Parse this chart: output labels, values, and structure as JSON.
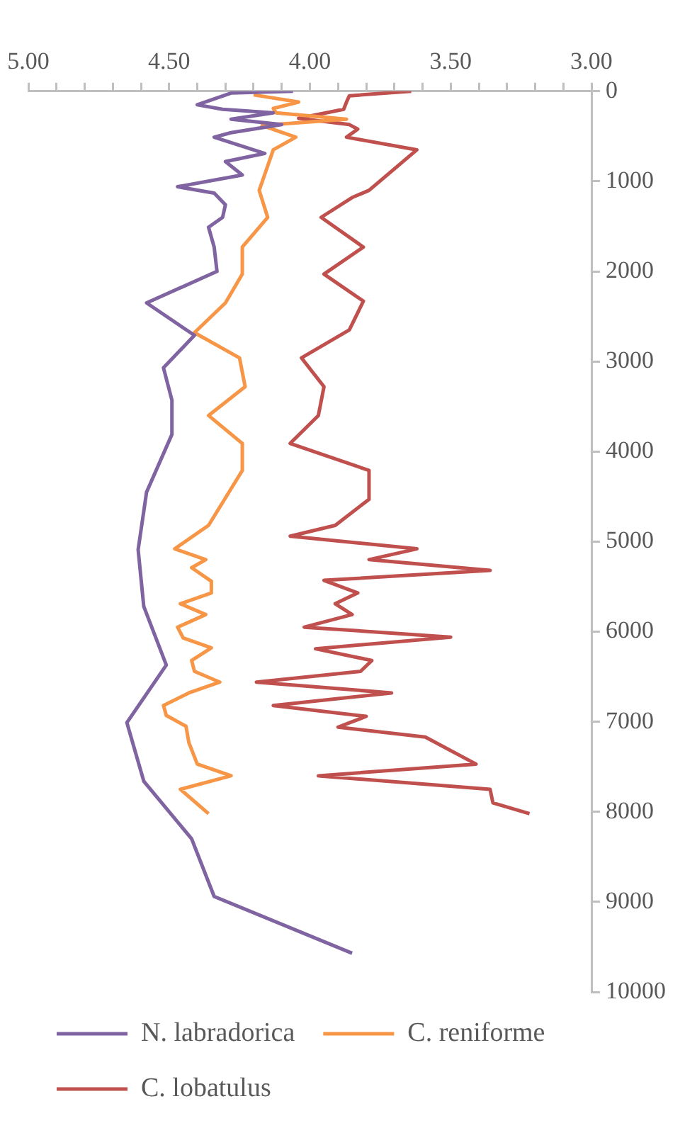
{
  "chart_data": {
    "type": "line",
    "xlim": [
      5,
      3
    ],
    "ylim": [
      10000,
      0
    ],
    "xticks": [
      {
        "value": 5,
        "label": "5.00"
      },
      {
        "value": 4.9,
        "label": null
      },
      {
        "value": 4.8,
        "label": null
      },
      {
        "value": 4.7,
        "label": null
      },
      {
        "value": 4.6,
        "label": null
      },
      {
        "value": 4.5,
        "label": "4.50"
      },
      {
        "value": 4.4,
        "label": null
      },
      {
        "value": 4.3,
        "label": null
      },
      {
        "value": 4.2,
        "label": null
      },
      {
        "value": 4.1,
        "label": null
      },
      {
        "value": 4,
        "label": "4.00"
      },
      {
        "value": 3.9,
        "label": null
      },
      {
        "value": 3.8,
        "label": null
      },
      {
        "value": 3.7,
        "label": null
      },
      {
        "value": 3.6,
        "label": null
      },
      {
        "value": 3.5,
        "label": "3.50"
      },
      {
        "value": 3.4,
        "label": null
      },
      {
        "value": 3.3,
        "label": null
      },
      {
        "value": 3.2,
        "label": null
      },
      {
        "value": 3.1,
        "label": null
      },
      {
        "value": 3,
        "label": "3.00"
      }
    ],
    "yticks": [
      0,
      1000,
      2000,
      3000,
      4000,
      5000,
      6000,
      7000,
      8000,
      9000,
      10000
    ],
    "grid": false,
    "legend": "bottom",
    "marker": "none",
    "series": [
      {
        "name": "N. labradorica",
        "color": "#8064a2",
        "x": [
          4.06,
          4.28,
          4.4,
          4.31,
          4.13,
          4.28,
          4.1,
          4.28,
          4.34,
          4.16,
          4.3,
          4.24,
          4.47,
          4.34,
          4.3,
          4.31,
          4.36,
          4.34,
          4.33,
          4.58,
          4.41,
          4.52,
          4.49,
          4.49,
          4.58,
          4.61,
          4.59,
          4.51,
          4.65,
          4.59,
          4.42,
          4.34,
          3.85
        ],
        "values": [
          0,
          20,
          150,
          200,
          240,
          310,
          370,
          460,
          510,
          690,
          780,
          930,
          1060,
          1130,
          1260,
          1400,
          1510,
          1730,
          2000,
          2350,
          2710,
          3070,
          3430,
          3810,
          4450,
          5090,
          5720,
          6370,
          7010,
          7660,
          8300,
          8940,
          9570
        ]
      },
      {
        "name": "C. reniforme",
        "color": "#f79646",
        "x": [
          4.2,
          4.04,
          4.13,
          4.12,
          3.87,
          4.17,
          4.05,
          4.13,
          4.18,
          4.15,
          4.24,
          4.24,
          4.3,
          4.41,
          4.25,
          4.23,
          4.36,
          4.24,
          4.24,
          4.36,
          4.48,
          4.37,
          4.42,
          4.35,
          4.35,
          4.46,
          4.37,
          4.47,
          4.45,
          4.35,
          4.42,
          4.41,
          4.32,
          4.43,
          4.52,
          4.51,
          4.44,
          4.43,
          4.4,
          4.28,
          4.46,
          4.36
        ],
        "values": [
          40,
          120,
          190,
          240,
          310,
          380,
          510,
          650,
          1100,
          1400,
          1730,
          2030,
          2350,
          2680,
          2960,
          3280,
          3600,
          3910,
          4210,
          4820,
          5080,
          5200,
          5290,
          5440,
          5570,
          5690,
          5810,
          5950,
          6070,
          6180,
          6320,
          6440,
          6560,
          6680,
          6820,
          6930,
          7050,
          7230,
          7470,
          7600,
          7750,
          8020
        ]
      },
      {
        "name": "C. lobatulus",
        "color": "#c0504d",
        "x": [
          3.64,
          3.86,
          3.87,
          3.88,
          4.04,
          3.86,
          3.83,
          3.87,
          3.62,
          3.79,
          3.85,
          3.96,
          3.81,
          3.95,
          3.81,
          3.86,
          4.03,
          3.95,
          3.97,
          4.07,
          3.79,
          3.79,
          3.91,
          4.07,
          3.62,
          3.79,
          3.36,
          3.95,
          3.83,
          3.91,
          3.85,
          4.02,
          3.5,
          3.98,
          3.78,
          3.82,
          4.19,
          3.71,
          4.13,
          3.8,
          3.9,
          3.59,
          3.41,
          3.97,
          3.36,
          3.35,
          3.22
        ],
        "values": [
          0,
          50,
          120,
          200,
          300,
          370,
          420,
          510,
          650,
          1100,
          1180,
          1400,
          1730,
          2030,
          2330,
          2650,
          2960,
          3280,
          3600,
          3910,
          4210,
          4530,
          4820,
          4940,
          5080,
          5200,
          5320,
          5430,
          5570,
          5690,
          5810,
          5950,
          6060,
          6190,
          6320,
          6440,
          6560,
          6680,
          6820,
          6940,
          7060,
          7170,
          7470,
          7600,
          7750,
          7900,
          8020
        ]
      }
    ]
  }
}
